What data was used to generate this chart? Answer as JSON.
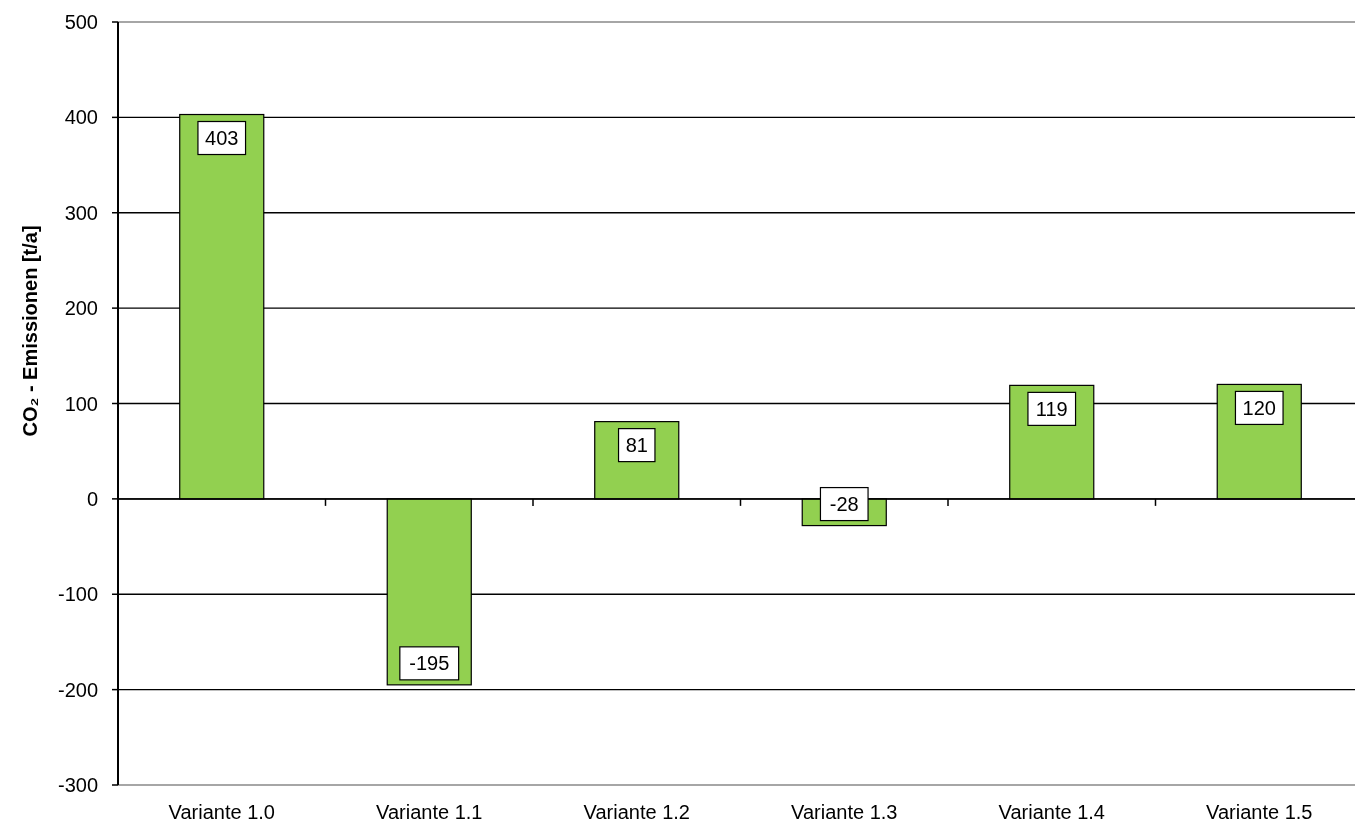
{
  "chart_data": {
    "type": "bar",
    "ylabel": "CO₂ - Emissionen [t/a]",
    "categories": [
      "Variante 1.0",
      "Variante 1.1",
      "Variante 1.2",
      "Variante 1.3",
      "Variante 1.4",
      "Variante 1.5"
    ],
    "values": [
      403,
      -195,
      81,
      -28,
      119,
      120
    ],
    "color": "#92d050",
    "ylim": [
      -300,
      500
    ],
    "yticks": [
      -300,
      -200,
      -100,
      0,
      100,
      200,
      300,
      400,
      500
    ],
    "grid": true,
    "data_labels": true
  }
}
